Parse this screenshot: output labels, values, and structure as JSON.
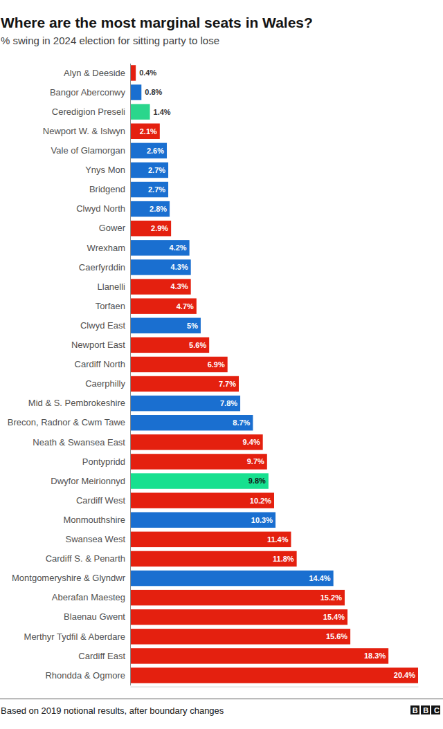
{
  "chart_data": {
    "type": "bar",
    "orientation": "horizontal",
    "title": "Where are the most marginal seats in Wales?",
    "subtitle": "% swing in 2024 election for sitting party to lose",
    "footnote": "Based on 2019 notional results, after boundary changes",
    "credit": "BBC",
    "categories": [
      "Alyn & Deeside",
      "Bangor Aberconwy",
      "Ceredigion Preseli",
      "Newport W. & Islwyn",
      "Vale of Glamorgan",
      "Ynys Mon",
      "Bridgend",
      "Clwyd North",
      "Gower",
      "Wrexham",
      "Caerfyrddin",
      "Llanelli",
      "Torfaen",
      "Clwyd East",
      "Newport East",
      "Cardiff North",
      "Caerphilly",
      "Mid & S. Pembrokeshire",
      "Brecon, Radnor & Cwm Tawe",
      "Neath & Swansea East",
      "Pontypridd",
      "Dwyfor Meirionnyd",
      "Cardiff West",
      "Monmouthshire",
      "Swansea West",
      "Cardiff S. & Penarth",
      "Montgomeryshire & Glyndwr",
      "Aberafan Maesteg",
      "Blaenau Gwent",
      "Merthyr Tydfil & Aberdare",
      "Cardiff East",
      "Rhondda & Ogmore"
    ],
    "values": [
      0.4,
      0.8,
      1.4,
      2.1,
      2.6,
      2.7,
      2.7,
      2.8,
      2.9,
      4.2,
      4.3,
      4.3,
      4.7,
      5,
      5.6,
      6.9,
      7.7,
      7.8,
      8.7,
      9.4,
      9.7,
      9.8,
      10.2,
      10.3,
      11.4,
      11.8,
      14.4,
      15.2,
      15.4,
      15.6,
      18.3,
      20.4
    ],
    "value_labels": [
      "0.4%",
      "0.8%",
      "1.4%",
      "2.1%",
      "2.6%",
      "2.7%",
      "2.7%",
      "2.8%",
      "2.9%",
      "4.2%",
      "4.3%",
      "4.3%",
      "4.7%",
      "5%",
      "5.6%",
      "6.9%",
      "7.7%",
      "7.8%",
      "8.7%",
      "9.4%",
      "9.7%",
      "9.8%",
      "10.2%",
      "10.3%",
      "11.4%",
      "11.8%",
      "14.4%",
      "15.2%",
      "15.4%",
      "15.6%",
      "18.3%",
      "20.4%"
    ],
    "colors": [
      "#e4200f",
      "#1a6fd0",
      "#2ad68c",
      "#e4200f",
      "#1a6fd0",
      "#1a6fd0",
      "#1a6fd0",
      "#1a6fd0",
      "#e4200f",
      "#1a6fd0",
      "#1a6fd0",
      "#e4200f",
      "#e4200f",
      "#1a6fd0",
      "#e4200f",
      "#e4200f",
      "#e4200f",
      "#1a6fd0",
      "#1a6fd0",
      "#e4200f",
      "#e4200f",
      "#17e08f",
      "#e4200f",
      "#1a6fd0",
      "#e4200f",
      "#e4200f",
      "#1a6fd0",
      "#e4200f",
      "#e4200f",
      "#e4200f",
      "#e4200f",
      "#e4200f"
    ],
    "xlim": [
      0,
      20.4
    ],
    "tick_labels": "y",
    "grid": false,
    "data_labels": true
  }
}
